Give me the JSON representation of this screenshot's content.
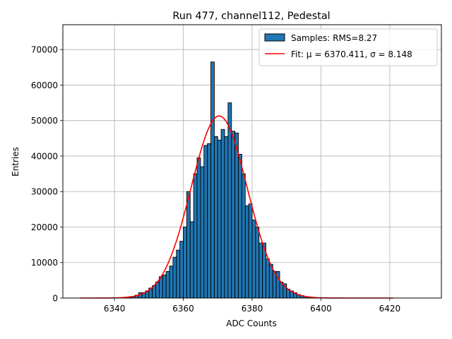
{
  "chart_data": {
    "type": "bar",
    "title": "Run 477, channel112, Pedestal",
    "xlabel": "ADC Counts",
    "ylabel": "Entries",
    "xlim": [
      6325,
      6435
    ],
    "ylim": [
      0,
      77000
    ],
    "xticks": [
      6340,
      6360,
      6380,
      6400,
      6420
    ],
    "yticks": [
      0,
      10000,
      20000,
      30000,
      40000,
      50000,
      60000,
      70000
    ],
    "grid": true,
    "legend_position": "top-right",
    "histogram": {
      "name": "Samples: RMS=8.27",
      "color": "#1f77b4",
      "bins": [
        6344,
        6345,
        6346,
        6347,
        6348,
        6349,
        6350,
        6351,
        6352,
        6353,
        6354,
        6355,
        6356,
        6357,
        6358,
        6359,
        6360,
        6361,
        6362,
        6363,
        6364,
        6365,
        6366,
        6367,
        6368,
        6369,
        6370,
        6371,
        6372,
        6373,
        6374,
        6375,
        6376,
        6377,
        6378,
        6379,
        6380,
        6381,
        6382,
        6383,
        6384,
        6385,
        6386,
        6387,
        6388,
        6389,
        6390,
        6391,
        6392,
        6393,
        6394,
        6395,
        6396,
        6397
      ],
      "values": [
        200,
        400,
        800,
        1500,
        1500,
        2000,
        2800,
        3500,
        4500,
        6000,
        6500,
        7500,
        9000,
        11500,
        13500,
        16000,
        20000,
        30000,
        21500,
        35000,
        39500,
        37000,
        43000,
        43500,
        66500,
        45500,
        44500,
        47500,
        45500,
        55000,
        47000,
        46500,
        40500,
        35000,
        26000,
        26500,
        22000,
        20000,
        15500,
        15500,
        11000,
        9500,
        7500,
        7500,
        4500,
        4000,
        2500,
        2000,
        1500,
        1000,
        700,
        400,
        200,
        100
      ],
      "bar_width": 1.0
    },
    "fit": {
      "name": "Fit: μ = 6370.411, σ = 8.148",
      "color": "#ff0000",
      "mu": 6370.411,
      "sigma": 8.148,
      "amplitude": 51300,
      "x_range": [
        6330,
        6421
      ]
    }
  }
}
